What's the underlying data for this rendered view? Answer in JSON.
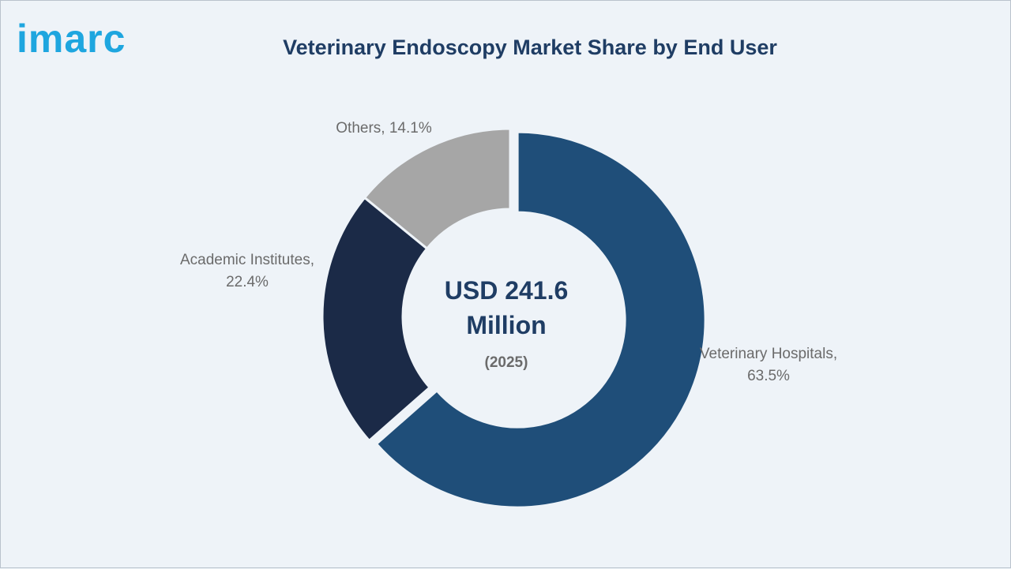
{
  "logo": {
    "text": "imarc",
    "color": "#1ea6df"
  },
  "title": "Veterinary Endoscopy Market Share by End User",
  "center": {
    "value": "USD 241.6 Million",
    "year": "(2025)"
  },
  "labels": {
    "veterinary_hospitals": "Veterinary Hospitals, 63.5%",
    "academic_institutes": "Academic Institutes, 22.4%",
    "others": "Others, 14.1%"
  },
  "chart_data": {
    "type": "pie",
    "variant": "donut",
    "title": "Veterinary Endoscopy Market Share by End User",
    "categories": [
      "Veterinary Hospitals",
      "Academic Institutes",
      "Others"
    ],
    "values": [
      63.5,
      22.4,
      14.1
    ],
    "unit": "%",
    "colors": [
      "#1f4e79",
      "#1b2a47",
      "#a6a6a6"
    ],
    "center_label": "USD 241.6 Million (2025)",
    "exploded_slice": "Veterinary Hospitals"
  }
}
